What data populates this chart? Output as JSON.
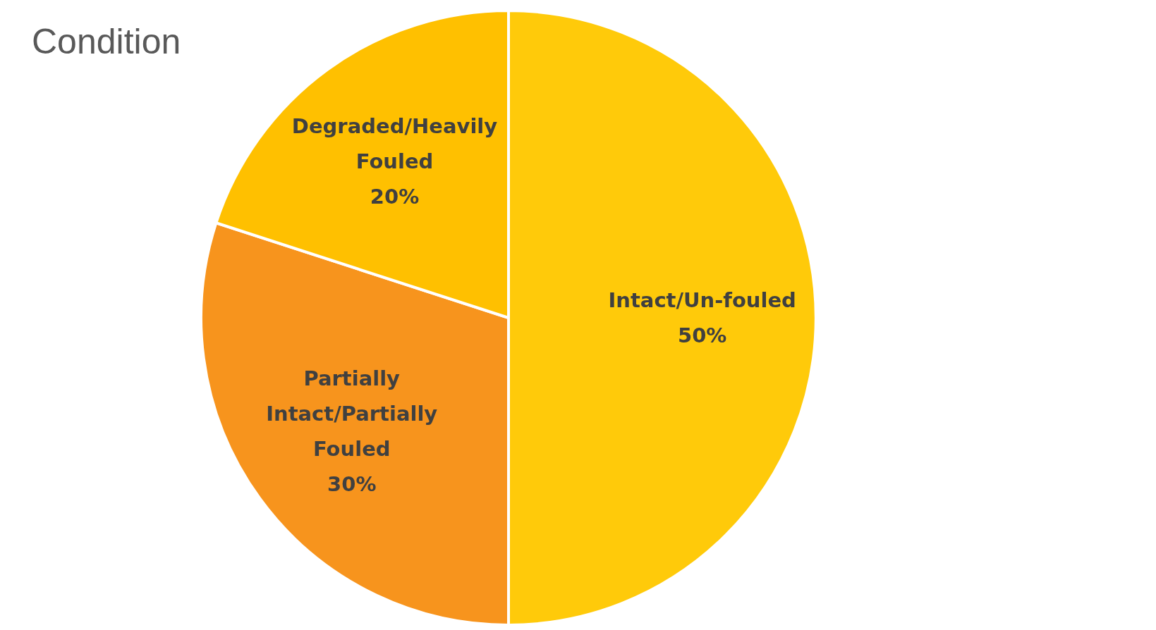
{
  "chart_data": {
    "type": "pie",
    "title": "Condition",
    "categories": [
      "Intact/Un-fouled",
      "Partially Intact/Partially Fouled",
      "Degraded/Heavily Fouled"
    ],
    "values": [
      50,
      30,
      20
    ],
    "value_labels": [
      "50%",
      "30%",
      "20%"
    ],
    "colors": [
      "#ffca0a",
      "#f7941d",
      "#ffc000"
    ],
    "legend": false
  }
}
